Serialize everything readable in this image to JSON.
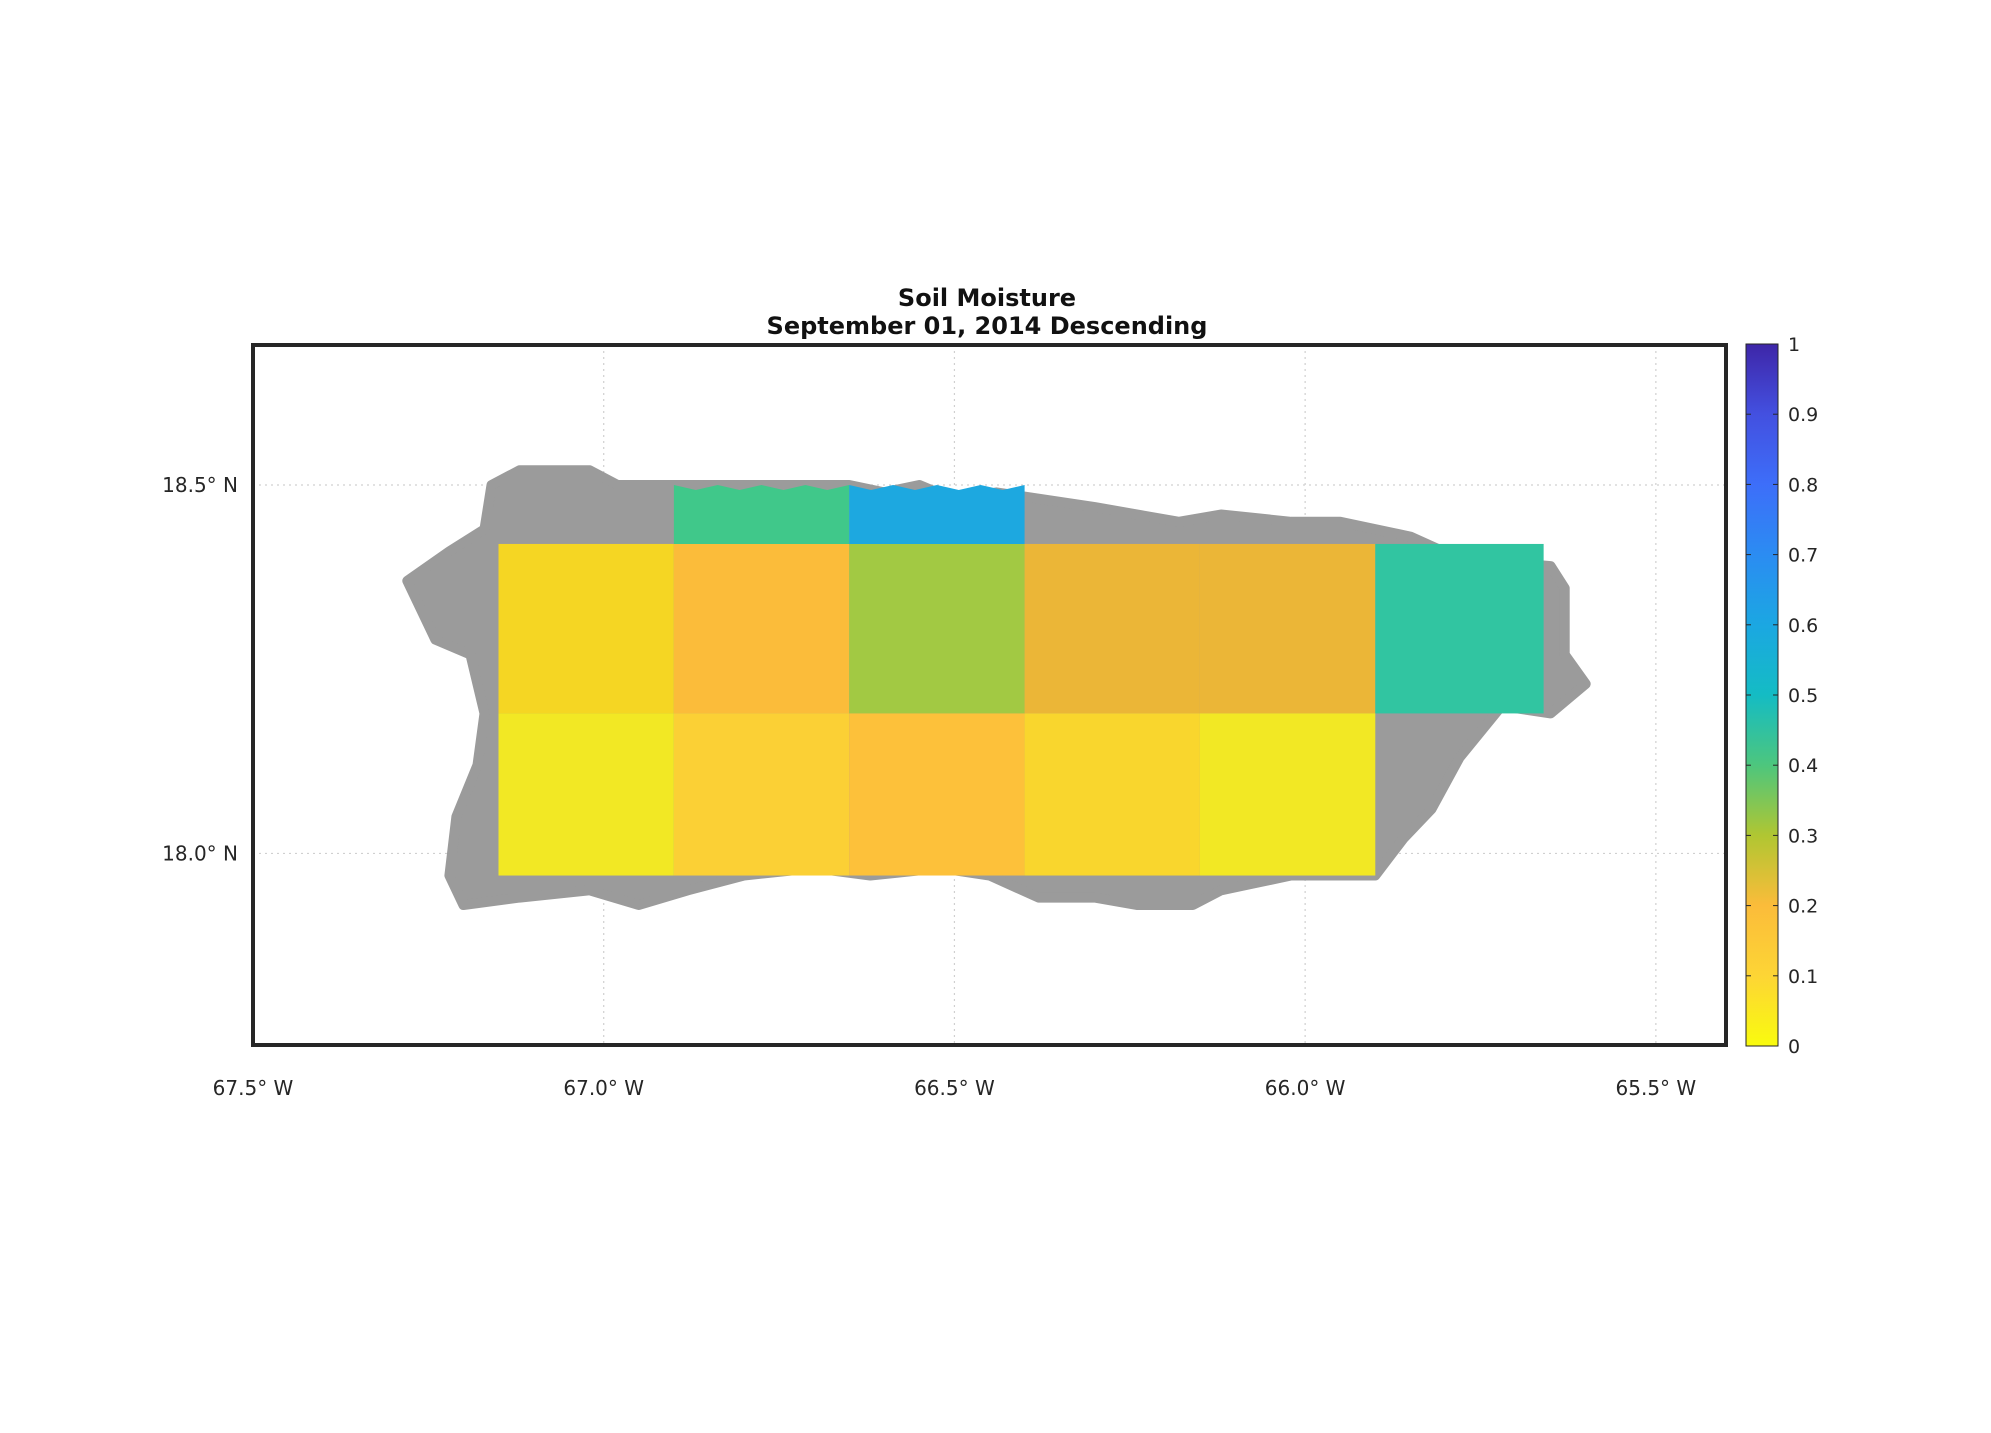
{
  "title": {
    "line1": "Soil Moisture",
    "line2": "September 01, 2014 Descending"
  },
  "map": {
    "lon_range": [
      -67.5,
      -65.4
    ],
    "lat_range": [
      17.74,
      18.69
    ],
    "lon_ticks": [
      {
        "value": -67.5,
        "label": "67.5° W"
      },
      {
        "value": -67.0,
        "label": "67.0° W"
      },
      {
        "value": -66.5,
        "label": "66.5° W"
      },
      {
        "value": -66.0,
        "label": "66.0° W"
      },
      {
        "value": -65.5,
        "label": "65.5° W"
      }
    ],
    "lat_ticks": [
      {
        "value": 18.5,
        "label": "18.5° N"
      },
      {
        "value": 18.0,
        "label": "18.0° N"
      }
    ],
    "land_color": "#9b9b9b",
    "land_outline": [
      [
        -67.16,
        18.5
      ],
      [
        -67.12,
        18.52
      ],
      [
        -67.02,
        18.52
      ],
      [
        -66.98,
        18.5
      ],
      [
        -66.86,
        18.5
      ],
      [
        -66.78,
        18.5
      ],
      [
        -66.65,
        18.5
      ],
      [
        -66.6,
        18.49
      ],
      [
        -66.55,
        18.5
      ],
      [
        -66.5,
        18.48
      ],
      [
        -66.44,
        18.49
      ],
      [
        -66.3,
        18.47
      ],
      [
        -66.18,
        18.45
      ],
      [
        -66.12,
        18.46
      ],
      [
        -66.02,
        18.45
      ],
      [
        -65.95,
        18.45
      ],
      [
        -65.85,
        18.43
      ],
      [
        -65.78,
        18.4
      ],
      [
        -65.65,
        18.39
      ],
      [
        -65.63,
        18.36
      ],
      [
        -65.63,
        18.27
      ],
      [
        -65.6,
        18.23
      ],
      [
        -65.65,
        18.19
      ],
      [
        -65.72,
        18.2
      ],
      [
        -65.78,
        18.13
      ],
      [
        -65.82,
        18.06
      ],
      [
        -65.86,
        18.02
      ],
      [
        -65.9,
        17.97
      ],
      [
        -66.02,
        17.97
      ],
      [
        -66.12,
        17.95
      ],
      [
        -66.16,
        17.93
      ],
      [
        -66.24,
        17.93
      ],
      [
        -66.3,
        17.94
      ],
      [
        -66.38,
        17.94
      ],
      [
        -66.45,
        17.97
      ],
      [
        -66.52,
        17.98
      ],
      [
        -66.62,
        17.97
      ],
      [
        -66.7,
        17.98
      ],
      [
        -66.8,
        17.97
      ],
      [
        -66.88,
        17.95
      ],
      [
        -66.95,
        17.93
      ],
      [
        -67.02,
        17.95
      ],
      [
        -67.12,
        17.94
      ],
      [
        -67.2,
        17.93
      ],
      [
        -67.22,
        17.97
      ],
      [
        -67.21,
        18.05
      ],
      [
        -67.18,
        18.12
      ],
      [
        -67.17,
        18.19
      ],
      [
        -67.19,
        18.27
      ],
      [
        -67.24,
        18.29
      ],
      [
        -67.28,
        18.37
      ],
      [
        -67.22,
        18.41
      ],
      [
        -67.17,
        18.44
      ]
    ],
    "cells": [
      {
        "lon": [
          -67.15,
          -66.9
        ],
        "lat": [
          18.19,
          18.42
        ],
        "value": 0.08,
        "color": "#f5d623",
        "top_edge": "flat"
      },
      {
        "lon": [
          -66.9,
          -66.65
        ],
        "lat": [
          18.19,
          18.42
        ],
        "value": 0.16,
        "color": "#fbbc3a",
        "top_edge": "flat"
      },
      {
        "lon": [
          -66.65,
          -66.4
        ],
        "lat": [
          18.19,
          18.42
        ],
        "value": 0.32,
        "color": "#a2c943",
        "top_edge": "flat"
      },
      {
        "lon": [
          -66.4,
          -66.15
        ],
        "lat": [
          18.19,
          18.42
        ],
        "value": 0.19,
        "color": "#ebb637",
        "top_edge": "flat"
      },
      {
        "lon": [
          -66.15,
          -65.9
        ],
        "lat": [
          18.19,
          18.42
        ],
        "value": 0.19,
        "color": "#ebb637",
        "top_edge": "flat"
      },
      {
        "lon": [
          -65.9,
          -65.66
        ],
        "lat": [
          18.19,
          18.42
        ],
        "value": 0.45,
        "color": "#31c5a1",
        "top_edge": "flat"
      },
      {
        "lon": [
          -67.15,
          -66.9
        ],
        "lat": [
          17.97,
          18.19
        ],
        "value": 0.02,
        "color": "#f2e824",
        "top_edge": "flat"
      },
      {
        "lon": [
          -66.9,
          -66.65
        ],
        "lat": [
          17.97,
          18.19
        ],
        "value": 0.1,
        "color": "#fbd035",
        "top_edge": "flat"
      },
      {
        "lon": [
          -66.65,
          -66.4
        ],
        "lat": [
          17.97,
          18.19
        ],
        "value": 0.14,
        "color": "#fdc13a",
        "top_edge": "flat"
      },
      {
        "lon": [
          -66.4,
          -66.15
        ],
        "lat": [
          17.97,
          18.19
        ],
        "value": 0.09,
        "color": "#f9d62d",
        "top_edge": "flat"
      },
      {
        "lon": [
          -66.15,
          -65.9
        ],
        "lat": [
          17.97,
          18.19
        ],
        "value": 0.02,
        "color": "#f2e824",
        "top_edge": "flat"
      },
      {
        "lon": [
          -66.9,
          -66.65
        ],
        "lat": [
          18.42,
          18.5
        ],
        "value": 0.41,
        "color": "#40c88a",
        "top_edge": "coast"
      },
      {
        "lon": [
          -66.65,
          -66.4
        ],
        "lat": [
          18.42,
          18.5
        ],
        "value": 0.61,
        "color": "#1da8e0",
        "top_edge": "coast"
      }
    ]
  },
  "colorbar": {
    "min": 0,
    "max": 1,
    "ticks": [
      {
        "value": 0,
        "label": "0"
      },
      {
        "value": 0.1,
        "label": "0.1"
      },
      {
        "value": 0.2,
        "label": "0.2"
      },
      {
        "value": 0.3,
        "label": "0.3"
      },
      {
        "value": 0.4,
        "label": "0.4"
      },
      {
        "value": 0.5,
        "label": "0.5"
      },
      {
        "value": 0.6,
        "label": "0.6"
      },
      {
        "value": 0.7,
        "label": "0.7"
      },
      {
        "value": 0.8,
        "label": "0.8"
      },
      {
        "value": 0.9,
        "label": "0.9"
      },
      {
        "value": 1,
        "label": "1"
      }
    ],
    "stops": [
      {
        "value": 0.0,
        "color": "#f9fb0e"
      },
      {
        "value": 0.1,
        "color": "#fdd535"
      },
      {
        "value": 0.2,
        "color": "#fbbc3a"
      },
      {
        "value": 0.3,
        "color": "#b0c632"
      },
      {
        "value": 0.4,
        "color": "#4dc67d"
      },
      {
        "value": 0.5,
        "color": "#14bcc4"
      },
      {
        "value": 0.6,
        "color": "#1ba7e2"
      },
      {
        "value": 0.7,
        "color": "#2b8cf2"
      },
      {
        "value": 0.8,
        "color": "#3d6ef9"
      },
      {
        "value": 0.9,
        "color": "#4350e0"
      },
      {
        "value": 1.0,
        "color": "#3e26a8"
      }
    ]
  }
}
